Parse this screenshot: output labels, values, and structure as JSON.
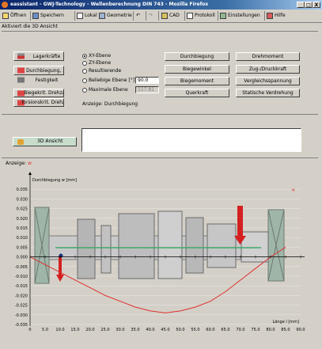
{
  "window": {
    "title": "eassistant - GWJ-Technology - Wellenberechnung DIN 743 - Mozilla Firefox",
    "min_label": "_",
    "max_label": "□",
    "close_label": "X"
  },
  "toolbar": {
    "open": "Öffnen",
    "save": "Speichern",
    "local": "Lokal",
    "geometry": "Geometrie",
    "undo": "↶",
    "redo": "↷",
    "cad": "CAD",
    "protocol": "Protokoll",
    "settings": "Einstellungen",
    "help": "Hilfe"
  },
  "status": "Aktiviert die 3D Ansicht",
  "left_buttons": {
    "bearing_forces": "Lagerkräfte",
    "deflection": "Durchbiegung, ...",
    "stiffness": "Festigkeit",
    "bending_critical": "Biegekrit. Drehzahl",
    "torsion_critical": "Torsionskrit. Drehzahl"
  },
  "planes": {
    "xy": "XY-Ebene",
    "zy": "ZY-Ebene",
    "resulting": "Resultierende",
    "any": "Beliebige Ebene [°]",
    "max": "Maximale Ebene",
    "any_value": "90.0",
    "max_value": "117.81",
    "display": "Anzeige: Durchbiegung"
  },
  "result_buttons": {
    "deflection": "Durchbiegung",
    "torque": "Drehmoment",
    "bending_angle": "Biegewinkel",
    "tension": "Zug-/Druckkraft",
    "bending_moment": "Biegemoment",
    "equiv_stress": "Vergleichsspannung",
    "shear_force": "Querkraft",
    "static_twist": "Statische Verdrehung"
  },
  "view3d": {
    "label": "3D Ansicht"
  },
  "chart_header": {
    "anzeige": "Anzeige:",
    "w": "w"
  },
  "chart_data": {
    "type": "line",
    "ylabel": "Durchbiegung w [mm]",
    "xlabel": "Länge l [mm]",
    "xlim": [
      0,
      90
    ],
    "ylim": [
      -0.035,
      0.04
    ],
    "x_ticks": [
      "0",
      "5.0",
      "10.0",
      "15.0",
      "20.0",
      "25.0",
      "30.0",
      "35.0",
      "40.0",
      "45.0",
      "50.0",
      "55.0",
      "60.0",
      "65.0",
      "70.0",
      "75.0",
      "80.0",
      "85.0",
      "90.0"
    ],
    "y_ticks": [
      "0.035",
      "0.030",
      "0.025",
      "0.020",
      "0.015",
      "0.010",
      "0.005",
      "0.000",
      "-0.005",
      "-0.010",
      "-0.015",
      "-0.020",
      "-0.025",
      "-0.030",
      "-0.035"
    ],
    "w_marker": "w",
    "series": [
      {
        "color": "#e03030",
        "x": [
          0,
          5,
          10,
          15,
          20,
          25,
          30,
          35,
          40,
          45,
          50,
          55,
          60,
          65,
          70,
          75,
          80,
          85
        ],
        "y": [
          0.0,
          -0.004,
          -0.008,
          -0.012,
          -0.016,
          -0.02,
          -0.023,
          -0.026,
          -0.028,
          -0.029,
          -0.028,
          -0.026,
          -0.023,
          -0.018,
          -0.012,
          -0.006,
          0.0,
          0.005
        ]
      }
    ]
  }
}
